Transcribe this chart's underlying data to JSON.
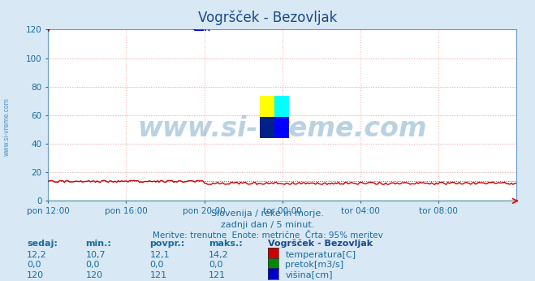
{
  "title": "Vogršček - Bezovljak",
  "bg_color": "#d8e8f4",
  "plot_bg_color": "#ffffff",
  "title_color": "#1a4a8a",
  "axis_color": "#6699cc",
  "grid_color": "#ffaaaa",
  "grid_color2": "#cccccc",
  "text_color": "#1a6ba0",
  "xlabel_ticks": [
    "pon 12:00",
    "pon 16:00",
    "pon 20:00",
    "tor 00:00",
    "tor 04:00",
    "tor 08:00"
  ],
  "ylim": [
    0,
    120
  ],
  "yticks": [
    0,
    20,
    40,
    60,
    80,
    100,
    120
  ],
  "n_points": 288,
  "temp_color": "#cc0000",
  "pretok_color": "#008800",
  "visina_color": "#0000cc",
  "watermark": "www.si-vreme.com",
  "watermark_color": "#1a6ba0",
  "watermark_alpha": 0.3,
  "subtitle1": "Slovenija / reke in morje.",
  "subtitle2": "zadnji dan / 5 minut.",
  "subtitle3": "Meritve: trenutne  Enote: metrične  Črta: 95% meritev",
  "legend_title": "Vogršček - Bezovljak",
  "legend_rows": [
    {
      "sedaj": "12,2",
      "min": "10,7",
      "povpr": "12,1",
      "maks": "14,2",
      "color": "#cc0000",
      "label": "temperatura[C]"
    },
    {
      "sedaj": "0,0",
      "min": "0,0",
      "povpr": "0,0",
      "maks": "0,0",
      "color": "#008800",
      "label": "pretok[m3/s]"
    },
    {
      "sedaj": "120",
      "min": "120",
      "povpr": "121",
      "maks": "121",
      "color": "#0000cc",
      "label": "višina[cm]"
    }
  ],
  "figsize": [
    6.59,
    3.46
  ],
  "dpi": 100
}
